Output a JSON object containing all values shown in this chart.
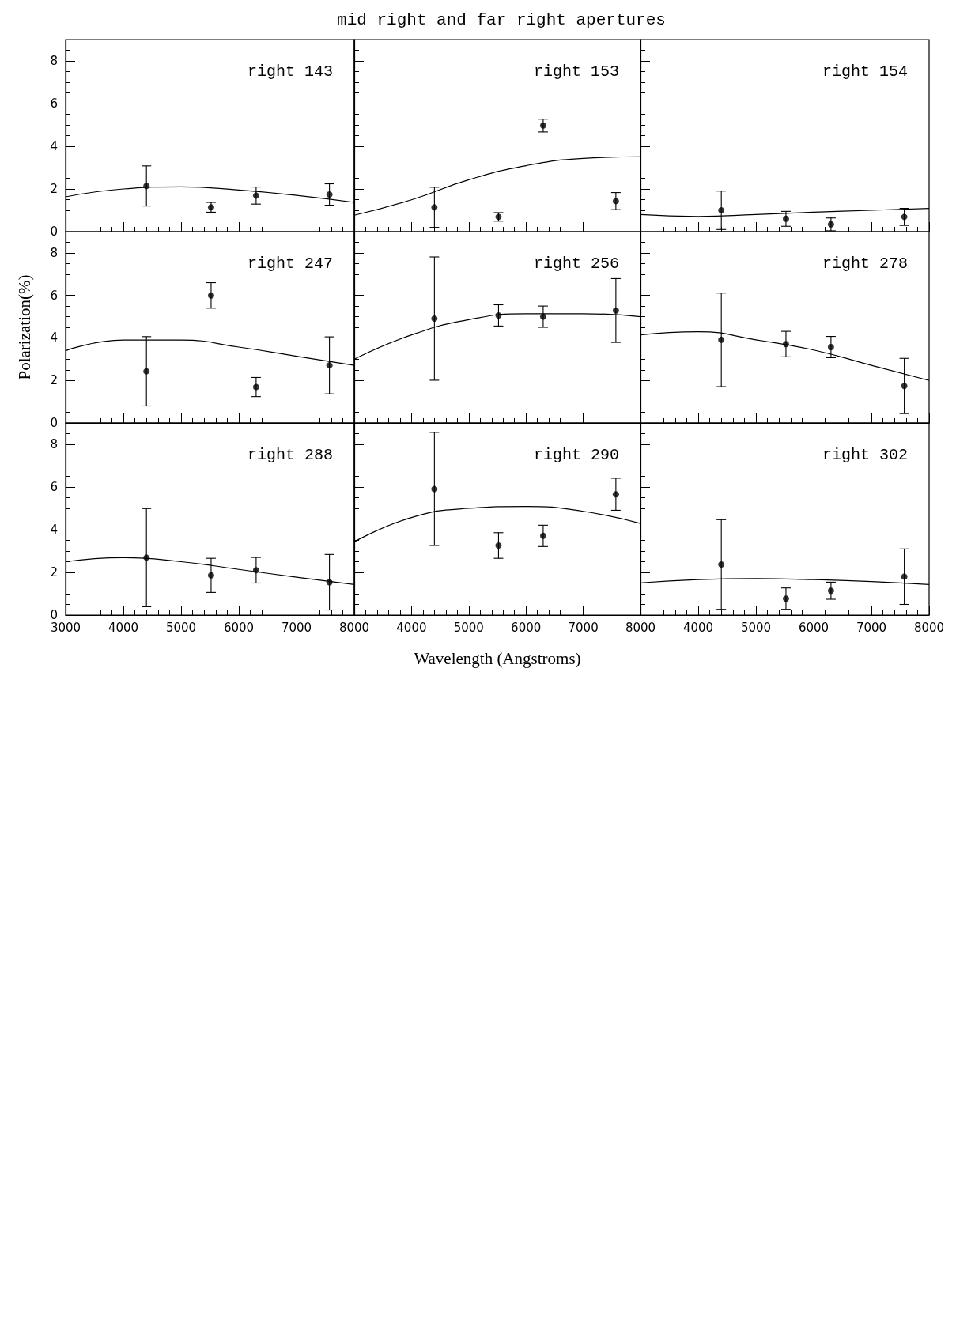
{
  "chart_data": [
    {
      "type": "scatter",
      "annotations": [
        "right 143"
      ],
      "xlim": [
        3000,
        8000
      ],
      "xticks": [
        3000,
        4000,
        5000,
        6000,
        7000,
        8000
      ],
      "ylim": [
        0,
        9
      ],
      "yticks": [
        0,
        2,
        4,
        6,
        8
      ],
      "tick_labels": "y",
      "marker": "circle",
      "series": [
        {
          "color": "#000000",
          "x": [
            4400,
            5520,
            6300,
            7570
          ],
          "values": [
            2.14,
            1.14,
            1.69,
            1.74
          ],
          "errors": [
            0.94,
            0.23,
            0.4,
            0.5
          ]
        },
        {
          "type": "line",
          "marker": "none",
          "color": "#000000",
          "x": [
            3000,
            4000,
            5000,
            6000,
            7000,
            8000
          ],
          "values": [
            1.63,
            2.0,
            2.1,
            1.95,
            1.7,
            1.37
          ]
        }
      ]
    },
    {
      "type": "scatter",
      "title": "mid right and far right apertures",
      "annotations": [
        "right 153"
      ],
      "xlim": [
        3000,
        8000
      ],
      "xticks": [
        3000,
        4000,
        5000,
        6000,
        7000,
        8000
      ],
      "ylim": [
        0,
        9
      ],
      "yticks": [
        0,
        2,
        4,
        6,
        8
      ],
      "tick_labels": false,
      "marker": "circle",
      "series": [
        {
          "color": "#000000",
          "x": [
            4400,
            5520,
            6300,
            7570
          ],
          "values": [
            1.14,
            0.69,
            4.97,
            1.43
          ],
          "errors": [
            0.94,
            0.2,
            0.3,
            0.4
          ]
        },
        {
          "type": "line",
          "marker": "none",
          "color": "#000000",
          "x": [
            3000,
            4000,
            5000,
            6000,
            7000,
            8000
          ],
          "values": [
            0.77,
            1.49,
            2.43,
            3.09,
            3.43,
            3.51
          ]
        }
      ]
    },
    {
      "type": "scatter",
      "annotations": [
        "right 154"
      ],
      "xlim": [
        3000,
        8000
      ],
      "xticks": [
        3000,
        4000,
        5000,
        6000,
        7000,
        8000
      ],
      "ylim": [
        0,
        9
      ],
      "yticks": [
        0,
        2,
        4,
        6,
        8
      ],
      "tick_labels": false,
      "marker": "circle",
      "series": [
        {
          "color": "#000000",
          "x": [
            4400,
            5520,
            6300,
            7570
          ],
          "values": [
            1.0,
            0.6,
            0.34,
            0.69
          ],
          "errors": [
            0.9,
            0.35,
            0.3,
            0.4
          ]
        },
        {
          "type": "line",
          "marker": "none",
          "color": "#000000",
          "x": [
            3000,
            4000,
            5000,
            6000,
            7000,
            8000
          ],
          "values": [
            0.8,
            0.71,
            0.8,
            0.91,
            1.0,
            1.09
          ]
        }
      ]
    },
    {
      "type": "scatter",
      "annotations": [
        "right 247"
      ],
      "ylabel": "Polarization(%)",
      "xlim": [
        3000,
        8000
      ],
      "xticks": [
        3000,
        4000,
        5000,
        6000,
        7000,
        8000
      ],
      "ylim": [
        0,
        9
      ],
      "yticks": [
        0,
        2,
        4,
        6,
        8
      ],
      "tick_labels": "y",
      "marker": "circle",
      "series": [
        {
          "color": "#000000",
          "x": [
            4400,
            5520,
            6300,
            7570
          ],
          "values": [
            2.43,
            6.0,
            1.69,
            2.71
          ],
          "errors": [
            1.63,
            0.6,
            0.45,
            1.34
          ]
        },
        {
          "type": "line",
          "marker": "none",
          "color": "#000000",
          "x": [
            3000,
            4000,
            5000,
            6000,
            7000,
            8000
          ],
          "values": [
            3.4,
            3.9,
            3.9,
            3.57,
            3.14,
            2.71
          ]
        }
      ]
    },
    {
      "type": "scatter",
      "annotations": [
        "right 256"
      ],
      "xlim": [
        3000,
        8000
      ],
      "xticks": [
        3000,
        4000,
        5000,
        6000,
        7000,
        8000
      ],
      "ylim": [
        0,
        9
      ],
      "yticks": [
        0,
        2,
        4,
        6,
        8
      ],
      "tick_labels": false,
      "marker": "circle",
      "series": [
        {
          "color": "#000000",
          "x": [
            4400,
            5520,
            6300,
            7570
          ],
          "values": [
            4.91,
            5.06,
            5.0,
            5.29
          ],
          "errors": [
            2.9,
            0.5,
            0.5,
            1.5
          ]
        },
        {
          "type": "line",
          "marker": "none",
          "color": "#000000",
          "x": [
            3000,
            4000,
            5000,
            6000,
            7000,
            8000
          ],
          "values": [
            3.0,
            4.14,
            4.86,
            5.14,
            5.14,
            5.0
          ]
        }
      ]
    },
    {
      "type": "scatter",
      "annotations": [
        "right 278"
      ],
      "xlim": [
        3000,
        8000
      ],
      "xticks": [
        3000,
        4000,
        5000,
        6000,
        7000,
        8000
      ],
      "ylim": [
        0,
        9
      ],
      "yticks": [
        0,
        2,
        4,
        6,
        8
      ],
      "tick_labels": false,
      "marker": "circle",
      "series": [
        {
          "color": "#000000",
          "x": [
            4400,
            5520,
            6300,
            7570
          ],
          "values": [
            3.91,
            3.71,
            3.57,
            1.74
          ],
          "errors": [
            2.2,
            0.6,
            0.5,
            1.3
          ]
        },
        {
          "type": "line",
          "marker": "none",
          "color": "#000000",
          "x": [
            3000,
            4000,
            5000,
            6000,
            7000,
            8000
          ],
          "values": [
            4.14,
            4.29,
            3.91,
            3.43,
            2.71,
            2.0
          ]
        }
      ]
    },
    {
      "type": "scatter",
      "annotations": [
        "right 288"
      ],
      "xlim": [
        3000,
        8000
      ],
      "xticks": [
        3000,
        4000,
        5000,
        6000,
        7000,
        8000
      ],
      "ylim": [
        0,
        9
      ],
      "yticks": [
        0,
        2,
        4,
        6,
        8
      ],
      "marker": "circle",
      "series": [
        {
          "color": "#000000",
          "x": [
            4400,
            5520,
            6300,
            7570
          ],
          "values": [
            2.69,
            1.86,
            2.1,
            1.54
          ],
          "errors": [
            2.3,
            0.8,
            0.6,
            1.3
          ]
        },
        {
          "type": "line",
          "marker": "none",
          "color": "#000000",
          "x": [
            3000,
            4000,
            5000,
            6000,
            7000,
            8000
          ],
          "values": [
            2.5,
            2.69,
            2.5,
            2.14,
            1.77,
            1.43
          ]
        }
      ]
    },
    {
      "type": "scatter",
      "annotations": [
        "right 290"
      ],
      "xlabel": "Wavelength (Angstroms)",
      "xlim": [
        3000,
        8000
      ],
      "xticks": [
        4000,
        5000,
        6000,
        7000,
        8000
      ],
      "ylim": [
        0,
        9
      ],
      "yticks": [
        0,
        2,
        4,
        6,
        8
      ],
      "tick_labels": "x",
      "marker": "circle",
      "series": [
        {
          "color": "#000000",
          "x": [
            4400,
            5520,
            6300,
            7570
          ],
          "values": [
            5.91,
            3.26,
            3.71,
            5.66
          ],
          "errors": [
            2.65,
            0.6,
            0.5,
            0.75
          ]
        },
        {
          "type": "line",
          "marker": "none",
          "color": "#000000",
          "x": [
            3000,
            4000,
            5000,
            6000,
            7000,
            8000
          ],
          "values": [
            3.43,
            4.57,
            5.0,
            5.09,
            4.86,
            4.29
          ]
        }
      ]
    },
    {
      "type": "scatter",
      "annotations": [
        "right 302"
      ],
      "xlim": [
        3000,
        8000
      ],
      "xticks": [
        4000,
        5000,
        6000,
        7000,
        8000
      ],
      "ylim": [
        0,
        9
      ],
      "yticks": [
        0,
        2,
        4,
        6,
        8
      ],
      "tick_labels": "x",
      "marker": "circle",
      "series": [
        {
          "color": "#000000",
          "x": [
            4400,
            5520,
            6300,
            7570
          ],
          "values": [
            2.37,
            0.77,
            1.14,
            1.8
          ],
          "errors": [
            2.1,
            0.5,
            0.4,
            1.3
          ]
        },
        {
          "type": "line",
          "marker": "none",
          "color": "#000000",
          "x": [
            3000,
            4000,
            5000,
            6000,
            7000,
            8000
          ],
          "values": [
            1.51,
            1.66,
            1.71,
            1.66,
            1.57,
            1.43
          ]
        }
      ]
    }
  ]
}
